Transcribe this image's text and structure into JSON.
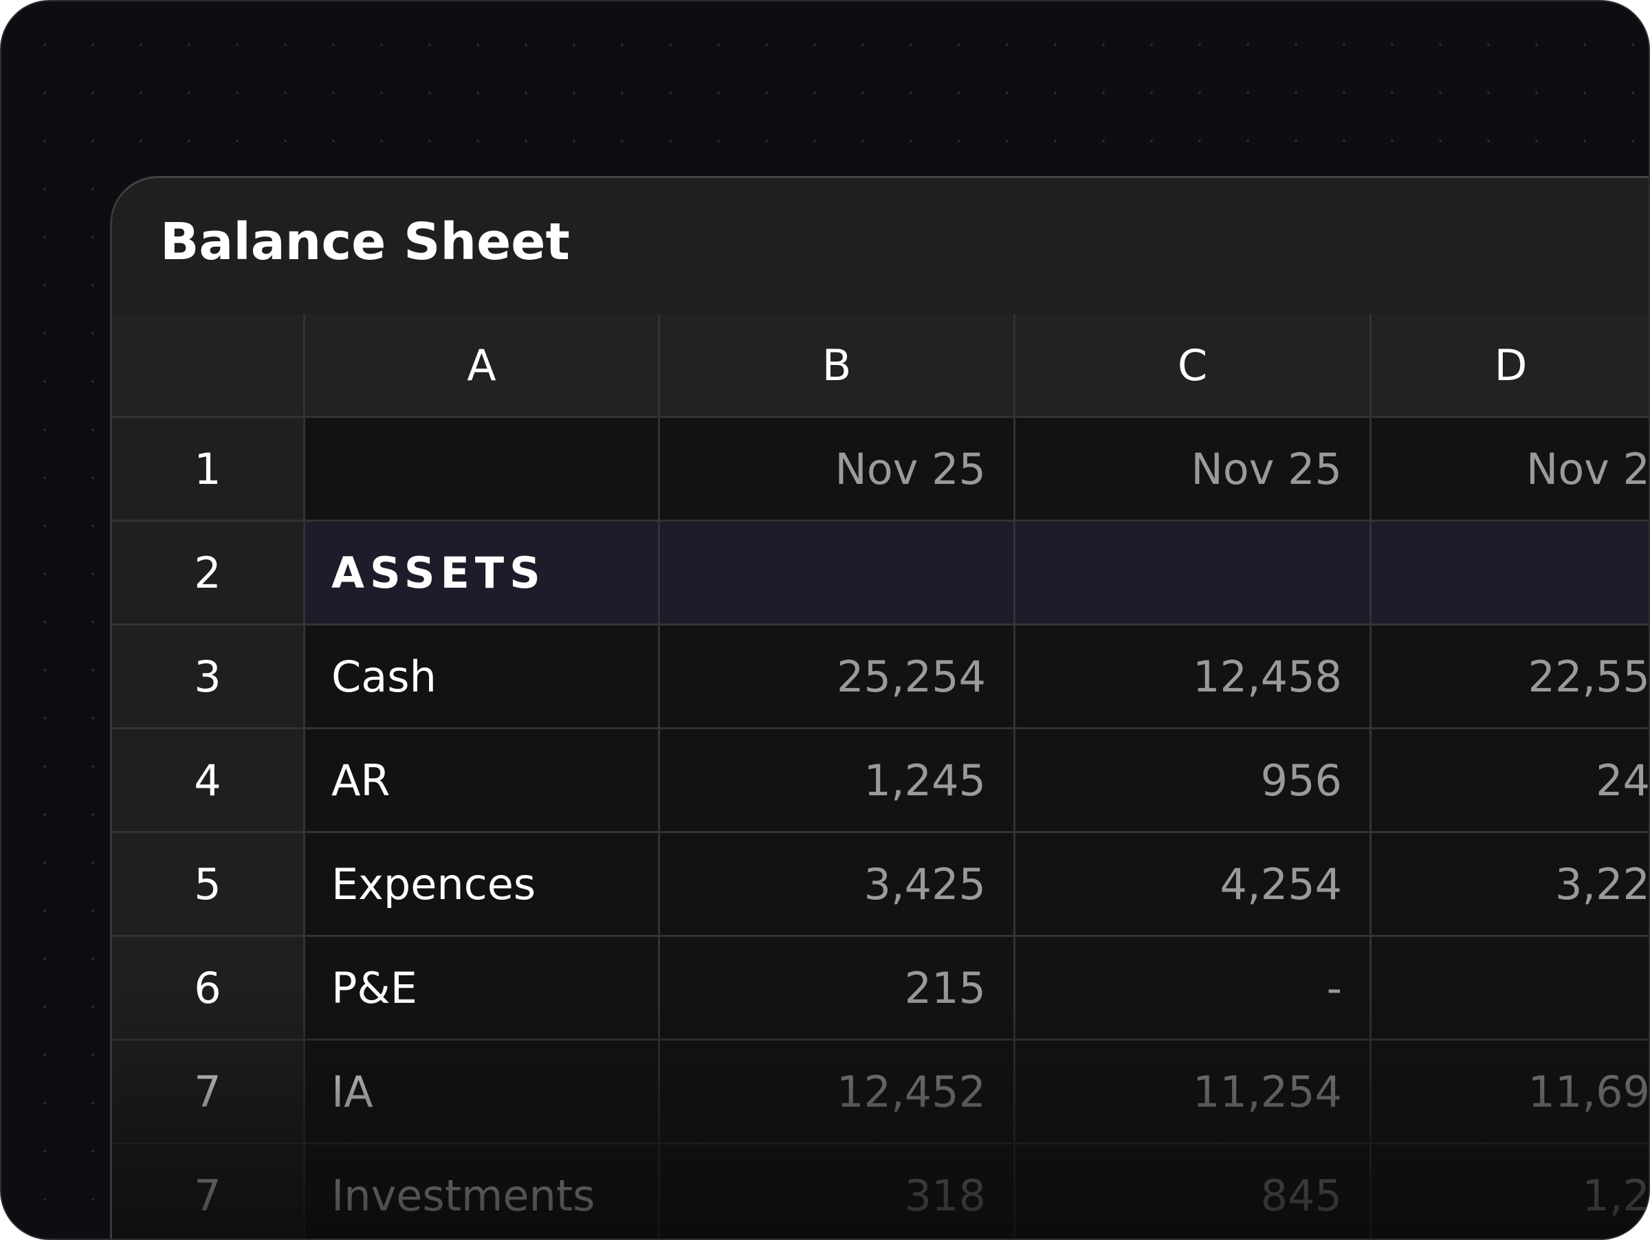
{
  "title": "Balance Sheet",
  "columns": [
    "A",
    "B",
    "C",
    "D"
  ],
  "rows": [
    {
      "number": 1,
      "cells": [
        null,
        "Nov 25",
        "Nov 25",
        "Nov 2"
      ]
    },
    {
      "number": 2,
      "cells": [
        "ASSETS",
        null,
        null,
        null
      ]
    },
    {
      "number": 3,
      "cells": [
        "Cash",
        "25,254",
        "12,458",
        "22,55"
      ]
    },
    {
      "number": 4,
      "cells": [
        "AR",
        "1,245",
        "956",
        "24"
      ]
    },
    {
      "number": 5,
      "cells": [
        "Expences",
        "3,425",
        "4,254",
        "3,22"
      ]
    },
    {
      "number": 6,
      "cells": [
        "P&E",
        "215",
        "-",
        null
      ]
    },
    {
      "number": 7,
      "cells": [
        "IA",
        "12,452",
        "11,254",
        "11,69"
      ]
    },
    {
      "number": 7,
      "cells": [
        "Investments",
        "318",
        "845",
        "1,2"
      ]
    }
  ]
}
